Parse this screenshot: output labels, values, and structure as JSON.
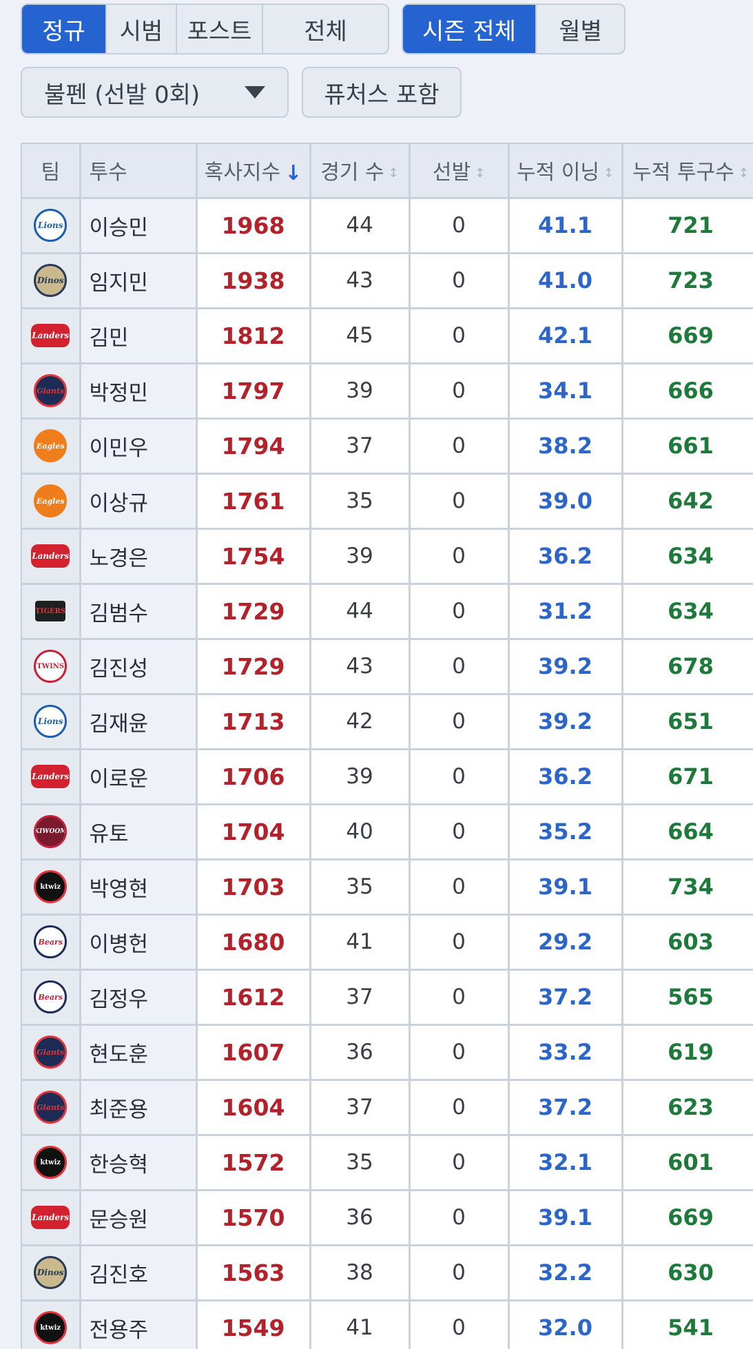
{
  "filters": {
    "type_tabs": [
      {
        "label": "정규",
        "active": true
      },
      {
        "label": "시범",
        "active": false
      },
      {
        "label": "포스트",
        "active": false
      },
      {
        "label": "전체",
        "active": false
      }
    ],
    "period_tabs": [
      {
        "label": "시즌 전체",
        "active": true
      },
      {
        "label": "월별",
        "active": false
      }
    ],
    "role_select": {
      "value": "불펜 (선발 0회)",
      "icon": "chevron-down-icon"
    },
    "futures_button": "퓨처스 포함"
  },
  "table": {
    "headers": {
      "team": "팀",
      "pitcher": "투수",
      "fatigue": "혹사지수",
      "games": "경기 수",
      "starts": "선발",
      "innings": "누적 이닝",
      "pitches": "누적 투구수"
    },
    "sort_icons": {
      "active": "↓",
      "inactive": "↕"
    },
    "colors": {
      "fatigue": "#b3222b",
      "innings": "#2c66c8",
      "pitches": "#1d7a3a",
      "accent": "#2563d1"
    },
    "rows": [
      {
        "team_logo": "Lions",
        "team_class": "lions",
        "name": "이승민",
        "fatigue": "1968",
        "games": "44",
        "starts": "0",
        "innings": "41.1",
        "pitches": "721"
      },
      {
        "team_logo": "Dinos",
        "team_class": "dinos",
        "name": "임지민",
        "fatigue": "1938",
        "games": "43",
        "starts": "0",
        "innings": "41.0",
        "pitches": "723"
      },
      {
        "team_logo": "Landers",
        "team_class": "landers",
        "name": "김민",
        "fatigue": "1812",
        "games": "45",
        "starts": "0",
        "innings": "42.1",
        "pitches": "669"
      },
      {
        "team_logo": "Giants",
        "team_class": "giants",
        "name": "박정민",
        "fatigue": "1797",
        "games": "39",
        "starts": "0",
        "innings": "34.1",
        "pitches": "666"
      },
      {
        "team_logo": "Eagles",
        "team_class": "eagles",
        "name": "이민우",
        "fatigue": "1794",
        "games": "37",
        "starts": "0",
        "innings": "38.2",
        "pitches": "661"
      },
      {
        "team_logo": "Eagles",
        "team_class": "eagles",
        "name": "이상규",
        "fatigue": "1761",
        "games": "35",
        "starts": "0",
        "innings": "39.0",
        "pitches": "642"
      },
      {
        "team_logo": "Landers",
        "team_class": "landers",
        "name": "노경은",
        "fatigue": "1754",
        "games": "39",
        "starts": "0",
        "innings": "36.2",
        "pitches": "634"
      },
      {
        "team_logo": "TIGERS",
        "team_class": "tigers",
        "name": "김범수",
        "fatigue": "1729",
        "games": "44",
        "starts": "0",
        "innings": "31.2",
        "pitches": "634"
      },
      {
        "team_logo": "TWINS",
        "team_class": "twins",
        "name": "김진성",
        "fatigue": "1729",
        "games": "43",
        "starts": "0",
        "innings": "39.2",
        "pitches": "678"
      },
      {
        "team_logo": "Lions",
        "team_class": "lions",
        "name": "김재윤",
        "fatigue": "1713",
        "games": "42",
        "starts": "0",
        "innings": "39.2",
        "pitches": "651"
      },
      {
        "team_logo": "Landers",
        "team_class": "landers",
        "name": "이로운",
        "fatigue": "1706",
        "games": "39",
        "starts": "0",
        "innings": "36.2",
        "pitches": "671"
      },
      {
        "team_logo": "KIWOOM",
        "team_class": "kiwoom",
        "name": "유토",
        "fatigue": "1704",
        "games": "40",
        "starts": "0",
        "innings": "35.2",
        "pitches": "664"
      },
      {
        "team_logo": "ktwiz",
        "team_class": "ktwiz",
        "name": "박영현",
        "fatigue": "1703",
        "games": "35",
        "starts": "0",
        "innings": "39.1",
        "pitches": "734"
      },
      {
        "team_logo": "Bears",
        "team_class": "bears",
        "name": "이병헌",
        "fatigue": "1680",
        "games": "41",
        "starts": "0",
        "innings": "29.2",
        "pitches": "603"
      },
      {
        "team_logo": "Bears",
        "team_class": "bears",
        "name": "김정우",
        "fatigue": "1612",
        "games": "37",
        "starts": "0",
        "innings": "37.2",
        "pitches": "565"
      },
      {
        "team_logo": "Giants",
        "team_class": "giants",
        "name": "현도훈",
        "fatigue": "1607",
        "games": "36",
        "starts": "0",
        "innings": "33.2",
        "pitches": "619"
      },
      {
        "team_logo": "Giants",
        "team_class": "giants",
        "name": "최준용",
        "fatigue": "1604",
        "games": "37",
        "starts": "0",
        "innings": "37.2",
        "pitches": "623"
      },
      {
        "team_logo": "ktwiz",
        "team_class": "ktwiz",
        "name": "한승혁",
        "fatigue": "1572",
        "games": "35",
        "starts": "0",
        "innings": "32.1",
        "pitches": "601"
      },
      {
        "team_logo": "Landers",
        "team_class": "landers",
        "name": "문승원",
        "fatigue": "1570",
        "games": "36",
        "starts": "0",
        "innings": "39.1",
        "pitches": "669"
      },
      {
        "team_logo": "Dinos",
        "team_class": "dinos",
        "name": "김진호",
        "fatigue": "1563",
        "games": "38",
        "starts": "0",
        "innings": "32.2",
        "pitches": "630"
      },
      {
        "team_logo": "ktwiz",
        "team_class": "ktwiz",
        "name": "전용주",
        "fatigue": "1549",
        "games": "41",
        "starts": "0",
        "innings": "32.0",
        "pitches": "541"
      }
    ]
  }
}
